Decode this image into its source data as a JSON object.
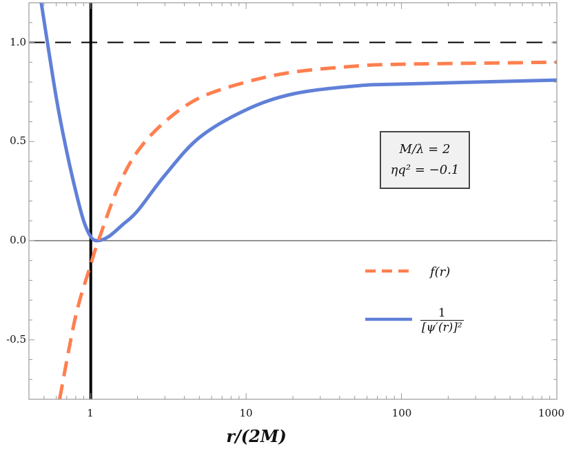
{
  "chart_data": {
    "type": "line",
    "title": "",
    "xlabel": "r/(2M)",
    "ylabel": "",
    "xscale": "log",
    "xlim": [
      0.4,
      1000
    ],
    "ylim": [
      -0.8,
      1.2
    ],
    "xticks": [
      "1",
      "10",
      "100",
      "1000"
    ],
    "yticks": [
      "-0.5",
      "0.0",
      "0.5",
      "1.0"
    ],
    "grid": false,
    "legend_position": "lower right",
    "reference_lines": [
      {
        "type": "horizontal",
        "y": 1.0,
        "style": "dashed",
        "color": "#000000"
      },
      {
        "type": "horizontal",
        "y": 0.0,
        "style": "solid",
        "color": "#555555"
      },
      {
        "type": "vertical",
        "x": 1.0,
        "style": "solid",
        "color": "#000000"
      }
    ],
    "annotation": [
      "M/λ = 2",
      "ηq² = −0.1"
    ],
    "series": [
      {
        "name": "f(r)",
        "style": "dashed",
        "color": "#ff7f4f",
        "x": [
          0.63,
          0.8,
          1.0,
          1.12,
          1.5,
          2,
          3,
          5,
          10,
          20,
          50,
          100,
          1000
        ],
        "y": [
          -0.8,
          -0.38,
          -0.12,
          0.0,
          0.27,
          0.45,
          0.6,
          0.72,
          0.8,
          0.85,
          0.88,
          0.89,
          0.9
        ]
      },
      {
        "name": "1/[ψ′(r)]²",
        "style": "solid",
        "color": "#6080d8",
        "x": [
          0.48,
          0.6,
          0.7,
          0.8,
          0.9,
          1.0,
          1.1,
          1.3,
          1.6,
          2,
          3,
          5,
          10,
          20,
          50,
          100,
          1000
        ],
        "y": [
          1.2,
          0.72,
          0.45,
          0.25,
          0.1,
          0.02,
          0.0,
          0.02,
          0.08,
          0.15,
          0.33,
          0.52,
          0.66,
          0.74,
          0.78,
          0.79,
          0.81
        ]
      }
    ]
  },
  "axes": {
    "xlabel": "r/(2M)",
    "xtick_labels": [
      "1",
      "10",
      "100",
      "1000"
    ],
    "ytick_labels": [
      "1.0",
      "0.5",
      "0.0",
      "-0.5"
    ]
  },
  "annotation": {
    "line1": "M/λ = 2",
    "line2": "ηq² = −0.1"
  },
  "legend": {
    "f_label": "f(r)",
    "psi_numerator": "1",
    "psi_denominator": "[ψ′(r)]²"
  },
  "colors": {
    "f": "#ff7f4f",
    "psi": "#6080d8"
  }
}
